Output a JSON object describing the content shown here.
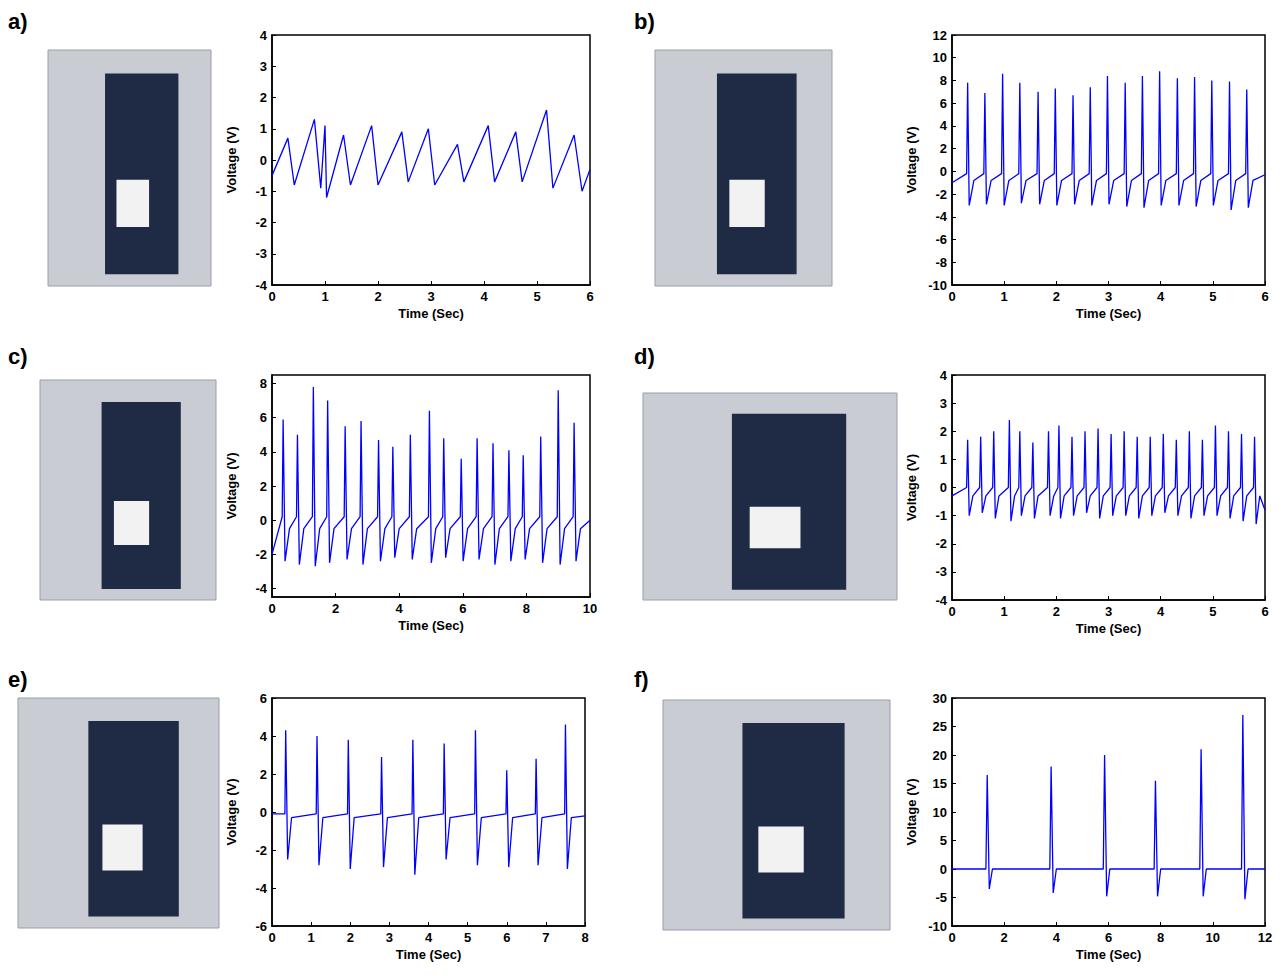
{
  "chart_data": [
    {
      "type": "line",
      "title": "a)",
      "x_label": "Time (Sec)",
      "y_label": "Voltage (V)",
      "color": "#0000ff",
      "grid": false,
      "xlim": [
        0,
        6
      ],
      "ylim": [
        -4,
        4
      ],
      "xticks": [
        0,
        1,
        2,
        3,
        4,
        5,
        6
      ],
      "yticks": [
        -4,
        -3,
        -2,
        -1,
        0,
        1,
        2,
        3,
        4
      ],
      "x": [
        0,
        0.3,
        0.42,
        0.8,
        0.92,
        1.0,
        1.03,
        1.35,
        1.48,
        1.88,
        2.0,
        2.45,
        2.57,
        2.95,
        3.07,
        3.5,
        3.62,
        4.08,
        4.2,
        4.6,
        4.72,
        5.18,
        5.3,
        5.7,
        5.85,
        6.0
      ],
      "values": [
        -0.5,
        0.7,
        -0.8,
        1.3,
        -0.9,
        1.1,
        -1.2,
        0.8,
        -0.8,
        1.1,
        -0.8,
        0.9,
        -0.7,
        1.0,
        -0.8,
        0.5,
        -0.7,
        1.1,
        -0.7,
        0.9,
        -0.7,
        1.6,
        -0.9,
        0.8,
        -1.0,
        -0.3
      ]
    },
    {
      "type": "line",
      "title": "b)",
      "x_label": "Time (Sec)",
      "y_label": "Voltage (V)",
      "color": "#0000ff",
      "grid": false,
      "xlim": [
        0,
        6
      ],
      "ylim": [
        -10,
        12
      ],
      "xticks": [
        0,
        1,
        2,
        3,
        4,
        5,
        6
      ],
      "yticks": [
        -10,
        -8,
        -6,
        -4,
        -2,
        0,
        2,
        4,
        6,
        8,
        10,
        12
      ],
      "x": [
        0,
        0.28,
        0.3,
        0.33,
        0.42,
        0.61,
        0.63,
        0.66,
        0.75,
        0.95,
        0.97,
        1.0,
        1.09,
        1.28,
        1.3,
        1.33,
        1.42,
        1.63,
        1.65,
        1.68,
        1.77,
        1.96,
        1.98,
        2.01,
        2.1,
        2.3,
        2.32,
        2.35,
        2.44,
        2.63,
        2.65,
        2.68,
        2.77,
        2.96,
        2.98,
        3.01,
        3.1,
        3.3,
        3.32,
        3.35,
        3.44,
        3.63,
        3.65,
        3.68,
        3.77,
        3.96,
        3.98,
        4.01,
        4.1,
        4.3,
        4.32,
        4.35,
        4.44,
        4.63,
        4.65,
        4.68,
        4.77,
        4.96,
        4.98,
        5.01,
        5.1,
        5.3,
        5.32,
        5.35,
        5.44,
        5.63,
        5.65,
        5.68,
        5.77,
        6.0
      ],
      "values": [
        -1.0,
        -0.2,
        7.8,
        -3.0,
        -0.8,
        -0.2,
        6.9,
        -2.9,
        -0.8,
        -0.2,
        8.6,
        -3.0,
        -0.8,
        -0.2,
        7.8,
        -2.8,
        -0.8,
        -0.2,
        7.0,
        -2.9,
        -0.8,
        -0.2,
        7.3,
        -3.0,
        -0.8,
        -0.2,
        6.7,
        -2.9,
        -0.8,
        -0.2,
        7.4,
        -3.0,
        -0.8,
        -0.2,
        8.4,
        -2.9,
        -0.8,
        -0.2,
        7.8,
        -3.1,
        -0.8,
        -0.2,
        8.4,
        -3.2,
        -0.8,
        -0.2,
        8.8,
        -3.0,
        -0.8,
        -0.2,
        8.2,
        -3.0,
        -0.8,
        -0.2,
        8.3,
        -3.1,
        -0.8,
        -0.2,
        8.0,
        -3.0,
        -0.8,
        -0.2,
        7.9,
        -3.4,
        -0.8,
        -0.2,
        7.2,
        -3.2,
        -0.8,
        -0.3
      ]
    },
    {
      "type": "line",
      "title": "c)",
      "x_label": "Time (Sec)",
      "y_label": "Voltage (V)",
      "color": "#0000ff",
      "grid": false,
      "xlim": [
        0,
        10
      ],
      "ylim": [
        -4.5,
        8.5
      ],
      "xticks": [
        0,
        2,
        4,
        6,
        8,
        10
      ],
      "yticks": [
        -4,
        -2,
        0,
        2,
        4,
        6,
        8
      ],
      "x": [
        0,
        0.32,
        0.35,
        0.41,
        0.55,
        0.77,
        0.8,
        0.86,
        1.0,
        1.27,
        1.3,
        1.36,
        1.5,
        1.72,
        1.75,
        1.81,
        1.95,
        2.27,
        2.3,
        2.36,
        2.5,
        2.77,
        2.8,
        2.86,
        3.0,
        3.32,
        3.35,
        3.41,
        3.55,
        3.77,
        3.8,
        3.86,
        4.0,
        4.32,
        4.35,
        4.41,
        4.55,
        4.92,
        4.95,
        5.01,
        5.15,
        5.37,
        5.4,
        5.46,
        5.6,
        5.92,
        5.95,
        6.01,
        6.15,
        6.42,
        6.45,
        6.51,
        6.65,
        6.92,
        6.95,
        7.01,
        7.15,
        7.42,
        7.45,
        7.51,
        7.65,
        7.87,
        7.9,
        7.96,
        8.1,
        8.42,
        8.45,
        8.51,
        8.65,
        8.97,
        9.0,
        9.06,
        9.2,
        9.47,
        9.5,
        9.56,
        9.7,
        10.0
      ],
      "values": [
        -2.0,
        0.2,
        5.9,
        -2.4,
        -0.5,
        0.2,
        5.0,
        -2.6,
        -0.5,
        0.2,
        7.8,
        -2.7,
        -0.5,
        0.2,
        7.0,
        -2.5,
        -0.5,
        0.2,
        5.5,
        -2.3,
        -0.5,
        0.2,
        5.8,
        -2.6,
        -0.5,
        0.2,
        4.7,
        -2.4,
        -0.5,
        0.2,
        4.3,
        -2.2,
        -0.5,
        0.2,
        5.0,
        -2.3,
        -0.5,
        0.2,
        6.4,
        -2.5,
        -0.5,
        0.2,
        4.8,
        -2.2,
        -0.5,
        0.2,
        3.6,
        -2.4,
        -0.5,
        0.2,
        4.8,
        -2.3,
        -0.5,
        0.2,
        4.5,
        -2.6,
        -0.5,
        0.2,
        4.1,
        -2.4,
        -0.5,
        0.2,
        3.8,
        -2.3,
        -0.5,
        0.2,
        4.9,
        -2.5,
        -0.5,
        0.2,
        7.6,
        -2.6,
        -0.5,
        0.2,
        5.7,
        -2.4,
        -0.5,
        0.0
      ]
    },
    {
      "type": "line",
      "title": "d)",
      "x_label": "Time (Sec)",
      "y_label": "Voltage (V)",
      "color": "#0000ff",
      "grid": false,
      "xlim": [
        0,
        6
      ],
      "ylim": [
        -4,
        4
      ],
      "xticks": [
        0,
        1,
        2,
        3,
        4,
        5,
        6
      ],
      "yticks": [
        -4,
        -3,
        -2,
        -1,
        0,
        1,
        2,
        3,
        4
      ],
      "x": [
        0,
        0.28,
        0.3,
        0.33,
        0.4,
        0.53,
        0.55,
        0.58,
        0.65,
        0.78,
        0.8,
        0.83,
        0.9,
        1.08,
        1.1,
        1.13,
        1.2,
        1.28,
        1.3,
        1.33,
        1.4,
        1.53,
        1.55,
        1.58,
        1.65,
        1.83,
        1.85,
        1.88,
        1.95,
        2.03,
        2.05,
        2.08,
        2.15,
        2.28,
        2.3,
        2.33,
        2.4,
        2.53,
        2.55,
        2.58,
        2.65,
        2.78,
        2.8,
        2.83,
        2.9,
        3.03,
        3.05,
        3.08,
        3.15,
        3.28,
        3.3,
        3.33,
        3.4,
        3.53,
        3.55,
        3.58,
        3.65,
        3.78,
        3.8,
        3.83,
        3.9,
        4.03,
        4.05,
        4.08,
        4.15,
        4.28,
        4.3,
        4.33,
        4.4,
        4.53,
        4.55,
        4.58,
        4.65,
        4.78,
        4.8,
        4.83,
        4.9,
        5.03,
        5.05,
        5.08,
        5.15,
        5.28,
        5.3,
        5.33,
        5.4,
        5.53,
        5.55,
        5.58,
        5.65,
        5.78,
        5.8,
        5.83,
        5.9,
        6.0
      ],
      "values": [
        -0.3,
        0.0,
        1.7,
        -1.0,
        -0.3,
        0.0,
        1.8,
        -0.9,
        -0.3,
        0.0,
        2.0,
        -1.1,
        -0.3,
        0.0,
        2.4,
        -1.2,
        -0.3,
        0.0,
        2.0,
        -1.0,
        -0.3,
        0.0,
        1.6,
        -1.1,
        -0.3,
        0.0,
        2.0,
        -1.0,
        -0.3,
        0.0,
        2.2,
        -1.1,
        -0.3,
        0.0,
        1.8,
        -1.0,
        -0.3,
        0.0,
        2.0,
        -0.9,
        -0.3,
        0.0,
        2.1,
        -1.1,
        -0.3,
        0.0,
        1.9,
        -1.0,
        -0.3,
        0.0,
        2.0,
        -1.0,
        -0.3,
        0.0,
        1.8,
        -1.1,
        -0.3,
        0.0,
        1.8,
        -1.0,
        -0.3,
        0.0,
        1.9,
        -0.9,
        -0.3,
        0.0,
        1.7,
        -1.0,
        -0.3,
        0.0,
        2.0,
        -1.1,
        -0.3,
        0.0,
        1.7,
        -1.0,
        -0.3,
        0.0,
        2.2,
        -1.0,
        -0.3,
        0.0,
        2.0,
        -1.1,
        -0.3,
        0.0,
        1.9,
        -1.2,
        -0.3,
        0.0,
        1.8,
        -1.3,
        -0.3,
        -0.8
      ]
    },
    {
      "type": "line",
      "title": "e)",
      "x_label": "Time (Sec)",
      "y_label": "Voltage (V)",
      "color": "#0000ff",
      "grid": false,
      "xlim": [
        0,
        8
      ],
      "ylim": [
        -6,
        6
      ],
      "xticks": [
        0,
        1,
        2,
        3,
        4,
        5,
        6,
        7,
        8
      ],
      "yticks": [
        -6,
        -4,
        -2,
        0,
        2,
        4,
        6
      ],
      "x": [
        0,
        0.33,
        0.35,
        0.4,
        0.5,
        1.13,
        1.15,
        1.2,
        1.3,
        1.93,
        1.95,
        2.0,
        2.1,
        2.78,
        2.8,
        2.85,
        2.95,
        3.58,
        3.6,
        3.65,
        3.75,
        4.38,
        4.4,
        4.45,
        4.55,
        5.18,
        5.2,
        5.25,
        5.35,
        5.98,
        6.0,
        6.05,
        6.15,
        6.73,
        6.75,
        6.8,
        6.9,
        7.48,
        7.5,
        7.55,
        7.65,
        8.0
      ],
      "values": [
        -0.1,
        -0.1,
        4.3,
        -2.5,
        -0.3,
        -0.1,
        4.0,
        -2.8,
        -0.3,
        -0.1,
        3.8,
        -3.0,
        -0.3,
        -0.1,
        2.9,
        -2.9,
        -0.3,
        -0.1,
        3.8,
        -3.3,
        -0.3,
        -0.1,
        3.6,
        -2.5,
        -0.3,
        -0.1,
        4.3,
        -2.8,
        -0.3,
        -0.1,
        2.2,
        -2.9,
        -0.3,
        -0.1,
        2.8,
        -2.8,
        -0.3,
        -0.1,
        4.6,
        -3.0,
        -0.3,
        -0.2
      ]
    },
    {
      "type": "line",
      "title": "f)",
      "x_label": "Time (Sec)",
      "y_label": "Voltage (V)",
      "color": "#0000ff",
      "grid": false,
      "xlim": [
        0,
        12
      ],
      "ylim": [
        -10,
        30
      ],
      "xticks": [
        0,
        2,
        4,
        6,
        8,
        10,
        12
      ],
      "yticks": [
        -10,
        -5,
        0,
        5,
        10,
        15,
        20,
        25,
        30
      ],
      "x": [
        0,
        1.3,
        1.35,
        1.43,
        1.55,
        3.75,
        3.8,
        3.88,
        4.0,
        5.8,
        5.85,
        5.93,
        6.05,
        7.75,
        7.8,
        7.88,
        8.0,
        9.5,
        9.55,
        9.63,
        9.75,
        11.1,
        11.15,
        11.23,
        11.35,
        12.0
      ],
      "values": [
        0,
        0,
        16.5,
        -3.5,
        0,
        0,
        18.0,
        -4.2,
        0,
        0,
        20.0,
        -4.8,
        0,
        0,
        15.5,
        -4.8,
        0,
        0,
        21.0,
        -4.8,
        0,
        0,
        27.0,
        -5.3,
        0,
        0
      ]
    }
  ]
}
